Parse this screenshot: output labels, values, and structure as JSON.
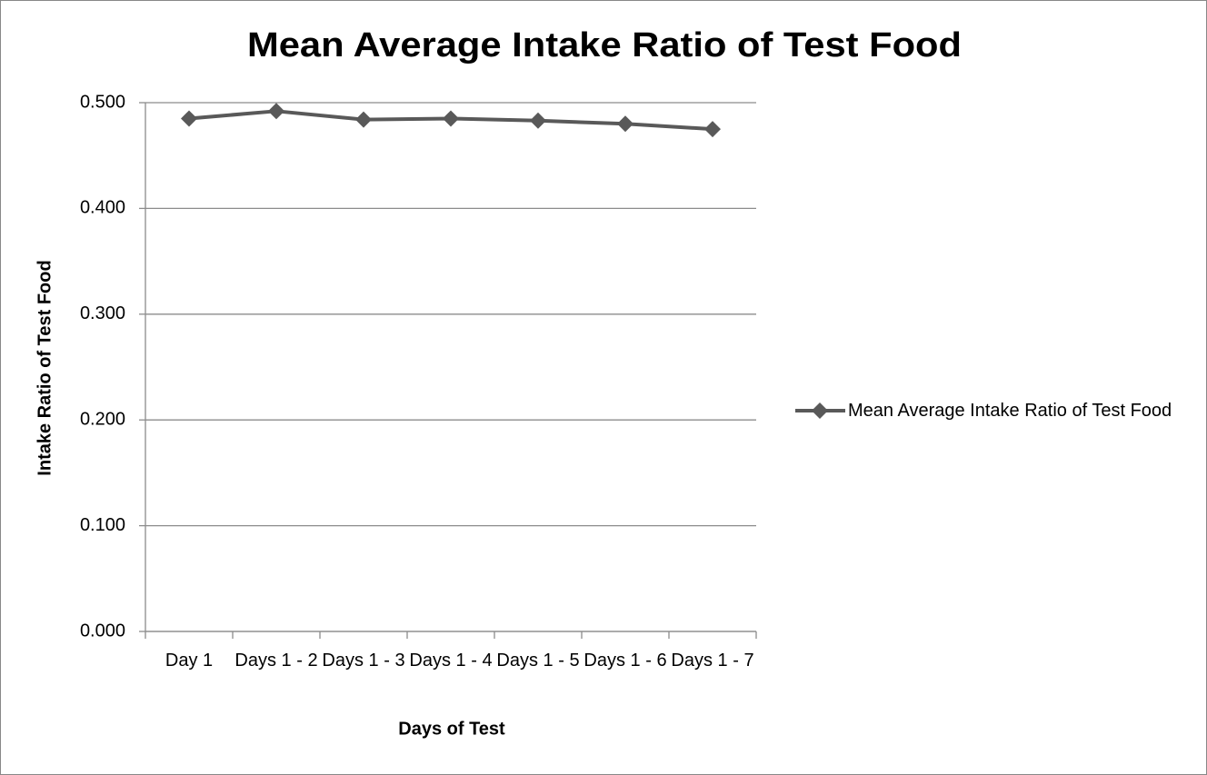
{
  "chart_data": {
    "type": "line",
    "title": "Mean Average Intake Ratio of Test Food",
    "x_label": "Days of Test",
    "y_label": "Intake Ratio of Test Food",
    "categories": [
      "Day 1",
      "Days 1 - 2",
      "Days 1 - 3",
      "Days 1 - 4",
      "Days 1 - 5",
      "Days 1 - 6",
      "Days 1 - 7"
    ],
    "series": [
      {
        "name": "Mean Average Intake Ratio of Test Food",
        "color": "#595959",
        "values": [
          0.485,
          0.492,
          0.484,
          0.485,
          0.483,
          0.48,
          0.475
        ]
      }
    ],
    "ylim": [
      0,
      0.5
    ],
    "yticks": [
      {
        "value": 0,
        "label": "0.000"
      },
      {
        "value": 0.1,
        "label": "0.100"
      },
      {
        "value": 0.2,
        "label": "0.200"
      },
      {
        "value": 0.3,
        "label": "0.300"
      },
      {
        "value": 0.4,
        "label": "0.400"
      },
      {
        "value": 0.5,
        "label": "0.500"
      }
    ],
    "grid": true,
    "legend": "right"
  }
}
